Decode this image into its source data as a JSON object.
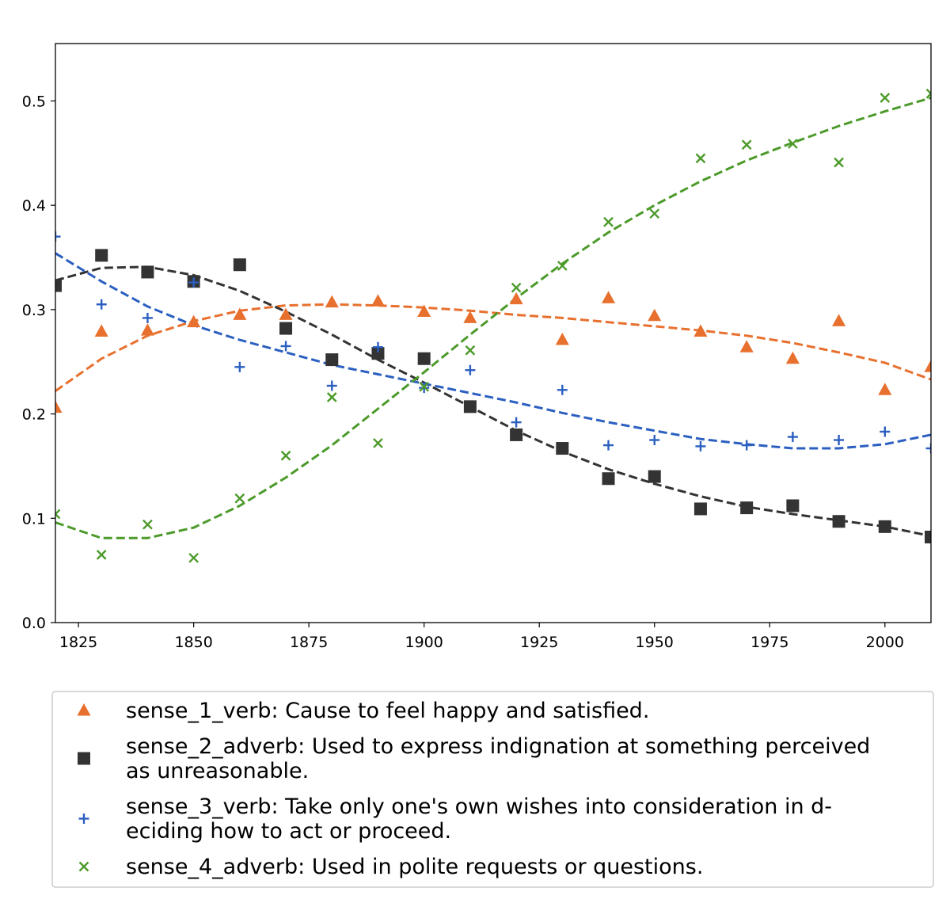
{
  "chart_data": {
    "type": "scatter",
    "title": "",
    "xlabel": "",
    "ylabel": "",
    "xlim": [
      1820,
      2010
    ],
    "ylim": [
      0,
      0.555
    ],
    "x_ticks": [
      "1825",
      "1850",
      "1875",
      "1900",
      "1925",
      "1950",
      "1975",
      "2000"
    ],
    "y_ticks": [
      "0.0",
      "0.1",
      "0.2",
      "0.3",
      "0.4",
      "0.5"
    ],
    "grid": false,
    "legend_position": "below",
    "series": [
      {
        "name": "sense_1_verb: Cause to feel happy and satisfied.",
        "legend_lines": [
          "sense_1_verb: Cause to feel happy and satisfied."
        ],
        "color": "#e8702e",
        "marker": "triangle",
        "x": [
          1820,
          1830,
          1840,
          1850,
          1860,
          1870,
          1880,
          1890,
          1900,
          1910,
          1920,
          1930,
          1940,
          1950,
          1960,
          1970,
          1980,
          1990,
          2000,
          2010
        ],
        "y": [
          0.206,
          0.279,
          0.28,
          0.288,
          0.295,
          0.295,
          0.307,
          0.308,
          0.298,
          0.292,
          0.31,
          0.271,
          0.311,
          0.294,
          0.279,
          0.264,
          0.253,
          0.289,
          0.223,
          0.245
        ],
        "trend_x": [
          1820,
          1830,
          1840,
          1850,
          1860,
          1870,
          1880,
          1890,
          1900,
          1910,
          1920,
          1930,
          1940,
          1950,
          1960,
          1970,
          1980,
          1990,
          2000,
          2010
        ],
        "trend_y": [
          0.222,
          0.253,
          0.275,
          0.289,
          0.299,
          0.304,
          0.305,
          0.304,
          0.302,
          0.299,
          0.295,
          0.292,
          0.288,
          0.284,
          0.28,
          0.275,
          0.268,
          0.259,
          0.249,
          0.233
        ]
      },
      {
        "name": "sense_2_adverb: Used to express indignation at something perceived as unreasonable.",
        "legend_lines": [
          "sense_2_adverb: Used to express indignation at something perceived",
          "as unreasonable."
        ],
        "color": "#333333",
        "marker": "square",
        "x": [
          1820,
          1830,
          1840,
          1850,
          1860,
          1870,
          1880,
          1890,
          1900,
          1910,
          1920,
          1930,
          1940,
          1950,
          1960,
          1970,
          1980,
          1990,
          2000,
          2010
        ],
        "y": [
          0.323,
          0.352,
          0.336,
          0.327,
          0.343,
          0.282,
          0.252,
          0.258,
          0.253,
          0.207,
          0.18,
          0.167,
          0.138,
          0.14,
          0.109,
          0.11,
          0.112,
          0.097,
          0.092,
          0.082
        ],
        "trend_x": [
          1820,
          1830,
          1840,
          1850,
          1860,
          1870,
          1880,
          1890,
          1900,
          1910,
          1920,
          1930,
          1940,
          1950,
          1960,
          1970,
          1980,
          1990,
          2000,
          2010
        ],
        "trend_y": [
          0.328,
          0.34,
          0.341,
          0.333,
          0.318,
          0.298,
          0.276,
          0.252,
          0.23,
          0.207,
          0.184,
          0.164,
          0.147,
          0.133,
          0.121,
          0.111,
          0.104,
          0.098,
          0.092,
          0.083
        ]
      },
      {
        "name": "sense_3_verb: Take only one's own wishes into consideration in deciding how to act or proceed.",
        "legend_lines": [
          "sense_3_verb: Take only one's own wishes into consideration in d-",
          "eciding how to act or proceed."
        ],
        "color": "#2b5fc0",
        "marker": "plus",
        "x": [
          1820,
          1830,
          1840,
          1850,
          1860,
          1870,
          1880,
          1890,
          1900,
          1910,
          1920,
          1930,
          1940,
          1950,
          1960,
          1970,
          1980,
          1990,
          2000,
          2010
        ],
        "y": [
          0.37,
          0.305,
          0.292,
          0.326,
          0.245,
          0.265,
          0.227,
          0.264,
          0.225,
          0.242,
          0.192,
          0.223,
          0.17,
          0.175,
          0.169,
          0.17,
          0.178,
          0.175,
          0.183,
          0.167
        ],
        "trend_x": [
          1820,
          1830,
          1840,
          1850,
          1860,
          1870,
          1880,
          1890,
          1900,
          1910,
          1920,
          1930,
          1940,
          1950,
          1960,
          1970,
          1980,
          1990,
          2000,
          2010
        ],
        "trend_y": [
          0.354,
          0.327,
          0.303,
          0.285,
          0.271,
          0.259,
          0.247,
          0.238,
          0.229,
          0.22,
          0.211,
          0.201,
          0.192,
          0.184,
          0.176,
          0.171,
          0.167,
          0.167,
          0.171,
          0.18
        ]
      },
      {
        "name": "sense_4_adverb: Used in polite requests or questions.",
        "legend_lines": [
          "sense_4_adverb: Used in polite requests or questions."
        ],
        "color": "#4c9a2a",
        "marker": "x",
        "x": [
          1820,
          1830,
          1840,
          1850,
          1860,
          1870,
          1880,
          1890,
          1900,
          1910,
          1920,
          1930,
          1940,
          1950,
          1960,
          1970,
          1980,
          1990,
          2000,
          2010
        ],
        "y": [
          0.104,
          0.065,
          0.094,
          0.062,
          0.119,
          0.16,
          0.216,
          0.172,
          0.226,
          0.261,
          0.321,
          0.342,
          0.384,
          0.392,
          0.445,
          0.458,
          0.459,
          0.441,
          0.503,
          0.507
        ],
        "trend_x": [
          1820,
          1830,
          1840,
          1850,
          1860,
          1870,
          1880,
          1890,
          1900,
          1910,
          1920,
          1930,
          1940,
          1950,
          1960,
          1970,
          1980,
          1990,
          2000,
          2010
        ],
        "trend_y": [
          0.096,
          0.081,
          0.081,
          0.091,
          0.112,
          0.139,
          0.17,
          0.205,
          0.24,
          0.276,
          0.311,
          0.344,
          0.374,
          0.4,
          0.423,
          0.443,
          0.46,
          0.476,
          0.49,
          0.503
        ]
      }
    ]
  }
}
